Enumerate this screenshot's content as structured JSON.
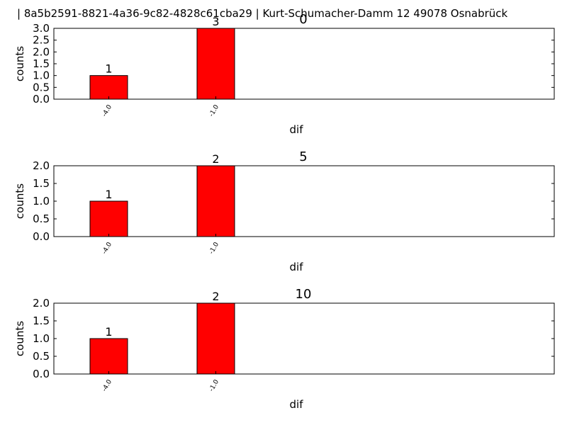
{
  "header": {
    "text": "| 8a5b2591-8821-4a36-9c82-4828c61cba29 |       Kurt-Schumacher-Damm 12 49078 Osnabrück"
  },
  "colors": {
    "bar": "#ff0000",
    "axis": "#000000",
    "background": "#ffffff"
  },
  "chart_data": [
    {
      "type": "bar",
      "title": "0",
      "xlabel": "dif",
      "ylabel": "counts",
      "categories": [
        "-4.0",
        "-1.0"
      ],
      "values": [
        1,
        3
      ],
      "data_labels": [
        "1",
        "3"
      ],
      "ylim": [
        0,
        3
      ],
      "yticks": [
        "0.0",
        "0.5",
        "1.0",
        "1.5",
        "2.0",
        "2.5",
        "3.0"
      ],
      "grid": false,
      "legend": "none"
    },
    {
      "type": "bar",
      "title": "5",
      "xlabel": "dif",
      "ylabel": "counts",
      "categories": [
        "-4.0",
        "-1.0"
      ],
      "values": [
        1,
        2
      ],
      "data_labels": [
        "1",
        "2"
      ],
      "ylim": [
        0,
        2
      ],
      "yticks": [
        "0.0",
        "0.5",
        "1.0",
        "1.5",
        "2.0"
      ],
      "grid": false,
      "legend": "none"
    },
    {
      "type": "bar",
      "title": "10",
      "xlabel": "dif",
      "ylabel": "counts",
      "categories": [
        "-4.0",
        "-1.0"
      ],
      "values": [
        1,
        2
      ],
      "data_labels": [
        "1",
        "2"
      ],
      "ylim": [
        0,
        2
      ],
      "yticks": [
        "0.0",
        "0.5",
        "1.0",
        "1.5",
        "2.0"
      ],
      "grid": false,
      "legend": "none"
    }
  ]
}
